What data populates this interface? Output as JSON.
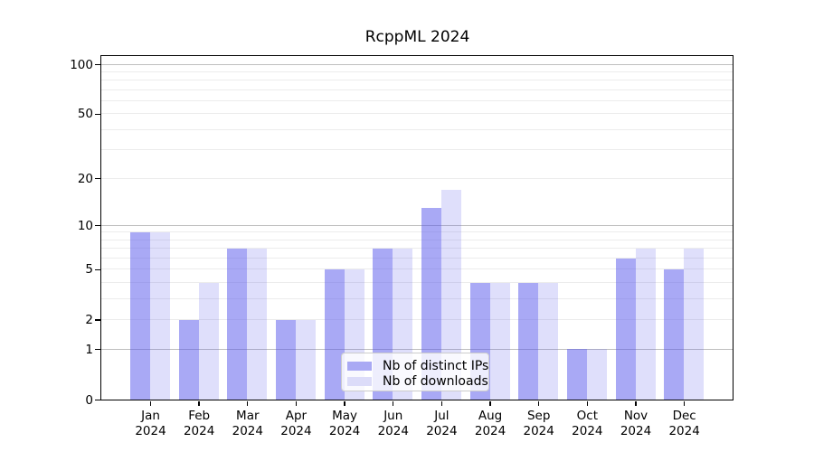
{
  "figure": {
    "background": "#ffffff"
  },
  "chart_data": {
    "type": "bar",
    "title": "RcppML 2024",
    "categories": [
      "Jan 2024",
      "Feb 2024",
      "Mar 2024",
      "Apr 2024",
      "May 2024",
      "Jun 2024",
      "Jul 2024",
      "Aug 2024",
      "Sep 2024",
      "Oct 2024",
      "Nov 2024",
      "Dec 2024"
    ],
    "months": [
      "Jan",
      "Feb",
      "Mar",
      "Apr",
      "May",
      "Jun",
      "Jul",
      "Aug",
      "Sep",
      "Oct",
      "Nov",
      "Dec"
    ],
    "year": "2024",
    "series": [
      {
        "name": "Nb of distinct IPs",
        "color": "#a9a9f4",
        "fill": "rgba(83,83,235,0.50)",
        "values": [
          9,
          2,
          7,
          2,
          5,
          7,
          13,
          4,
          4,
          1,
          6,
          5
        ]
      },
      {
        "name": "Nb of downloads",
        "color": "#dcdcf9",
        "fill": "rgba(83,83,235,0.19)",
        "values": [
          9,
          4,
          7,
          2,
          5,
          7,
          17,
          4,
          4,
          1,
          7,
          7
        ]
      }
    ],
    "xlabel": "",
    "ylabel": "",
    "yscale": "log1p",
    "ylim": [
      0,
      112
    ],
    "y_ticks": [
      0,
      1,
      2,
      5,
      10,
      20,
      50,
      100
    ],
    "y_grid_major": [
      1,
      10,
      100
    ],
    "y_grid_minor": [
      2,
      3,
      4,
      5,
      6,
      7,
      8,
      9,
      20,
      30,
      40,
      50,
      60,
      70,
      80,
      90
    ],
    "grid": true,
    "legend_position": "lower center"
  },
  "colors": {
    "spine": "#000000",
    "grid_major": "#bfbfbf",
    "grid_minor": "#ececec",
    "legend_border": "#cccccc"
  }
}
